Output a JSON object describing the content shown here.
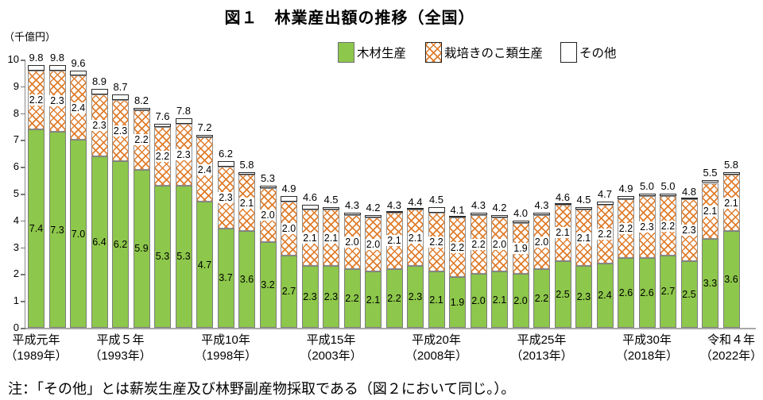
{
  "title": "図１　林業産出額の推移（全国）",
  "y_unit": "（千億円）",
  "note": "注：「その他」とは薪炭生産及び林野副産物採取である（図２において同じ。）。",
  "legend": {
    "items": [
      {
        "label": "木材生産",
        "swatch": "green"
      },
      {
        "label": "栽培きのこ類生産",
        "swatch": "orange-crosshatch"
      },
      {
        "label": "その他",
        "swatch": "white"
      }
    ]
  },
  "colors": {
    "wood_green": "#8dc74b",
    "mushroom_hatch_orange": "#e07e2e",
    "other_white": "#ffffff",
    "axis_gray": "#a8a8a8"
  },
  "chart_data": {
    "type": "bar",
    "stacked": true,
    "title": "図１　林業産出額の推移（全国）",
    "ylabel": "（千億円）",
    "ylim": [
      0,
      10
    ],
    "y_ticks": [
      0,
      1,
      2,
      3,
      4,
      5,
      6,
      7,
      8,
      9,
      10
    ],
    "grid": false,
    "legend_position": "top-right",
    "years": [
      1989,
      1990,
      1991,
      1992,
      1993,
      1994,
      1995,
      1996,
      1997,
      1998,
      1999,
      2000,
      2001,
      2002,
      2003,
      2004,
      2005,
      2006,
      2007,
      2008,
      2009,
      2010,
      2011,
      2012,
      2013,
      2014,
      2015,
      2016,
      2017,
      2018,
      2019,
      2020,
      2021,
      2022
    ],
    "series": [
      {
        "name": "木材生産",
        "values": [
          7.4,
          7.3,
          7.0,
          6.4,
          6.2,
          5.9,
          5.3,
          5.3,
          4.7,
          3.7,
          3.6,
          3.2,
          2.7,
          2.3,
          2.3,
          2.2,
          2.1,
          2.2,
          2.3,
          2.1,
          1.9,
          2.0,
          2.1,
          2.0,
          2.2,
          2.5,
          2.3,
          2.4,
          2.6,
          2.6,
          2.7,
          2.5,
          3.3,
          3.6
        ]
      },
      {
        "name": "栽培きのこ類生産",
        "values": [
          2.2,
          2.3,
          2.4,
          2.3,
          2.3,
          2.2,
          2.2,
          2.3,
          2.4,
          2.3,
          2.1,
          2.0,
          2.0,
          2.1,
          2.1,
          2.0,
          2.0,
          2.1,
          2.1,
          2.2,
          2.2,
          2.2,
          2.0,
          1.9,
          2.0,
          2.1,
          2.1,
          2.2,
          2.2,
          2.3,
          2.2,
          2.3,
          2.1,
          2.1
        ]
      },
      {
        "name": "その他",
        "values": [
          0.2,
          0.2,
          0.2,
          0.2,
          0.2,
          0.1,
          0.1,
          0.2,
          0.1,
          0.2,
          0.1,
          0.1,
          0.2,
          0.2,
          0.1,
          0.1,
          0.1,
          0.0,
          0.0,
          0.2,
          0.0,
          0.1,
          0.1,
          0.1,
          0.1,
          0.0,
          0.1,
          0.1,
          0.1,
          0.1,
          0.1,
          0.0,
          0.1,
          0.1
        ]
      }
    ],
    "totals": [
      9.8,
      9.8,
      9.6,
      8.9,
      8.7,
      8.2,
      7.6,
      7.8,
      7.2,
      6.2,
      5.8,
      5.3,
      4.9,
      4.6,
      4.5,
      4.3,
      4.2,
      4.3,
      4.4,
      4.5,
      4.1,
      4.3,
      4.2,
      4.0,
      4.3,
      4.6,
      4.5,
      4.7,
      4.9,
      5.0,
      5.0,
      4.8,
      5.5,
      5.8
    ],
    "x_ticks": [
      {
        "index": 0,
        "era": "平成元年",
        "year": "（1989年）"
      },
      {
        "index": 4,
        "era": "平成５年",
        "year": "（1993年）"
      },
      {
        "index": 9,
        "era": "平成10年",
        "year": "（1998年）"
      },
      {
        "index": 14,
        "era": "平成15年",
        "year": "（2003年）"
      },
      {
        "index": 19,
        "era": "平成20年",
        "year": "（2008年）"
      },
      {
        "index": 24,
        "era": "平成25年",
        "year": "（2013年）"
      },
      {
        "index": 29,
        "era": "平成30年",
        "year": "（2018年）"
      },
      {
        "index": 33,
        "era": "令和４年",
        "year": "（2022年）"
      }
    ]
  }
}
